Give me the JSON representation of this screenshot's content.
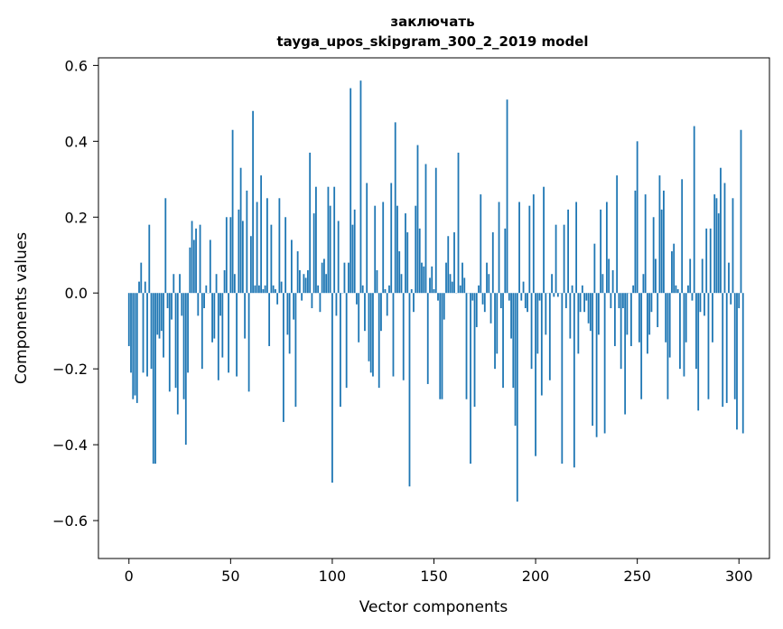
{
  "chart_data": {
    "type": "bar",
    "title": "заключать",
    "subtitle": "tayga_upos_skipgram_300_2_2019 model",
    "xlabel": "Vector components",
    "ylabel": "Components values",
    "xlim": [
      -15,
      315
    ],
    "ylim": [
      -0.7,
      0.62
    ],
    "xticks": [
      0,
      50,
      100,
      150,
      200,
      250,
      300
    ],
    "yticks": [
      -0.6,
      -0.4,
      -0.2,
      0.0,
      0.2,
      0.4,
      0.6
    ],
    "ytick_labels": [
      "−0.6",
      "−0.4",
      "−0.2",
      "0.0",
      "0.2",
      "0.4",
      "0.6"
    ],
    "bar_color": "#1f77b4",
    "grid": false,
    "values": [
      -0.14,
      -0.21,
      -0.28,
      -0.27,
      -0.29,
      0.03,
      0.08,
      -0.21,
      0.03,
      -0.22,
      0.18,
      -0.2,
      -0.45,
      -0.45,
      -0.11,
      -0.12,
      -0.1,
      -0.17,
      0.25,
      -0.04,
      -0.26,
      -0.07,
      0.05,
      -0.25,
      -0.32,
      0.05,
      -0.06,
      -0.28,
      -0.4,
      -0.21,
      0.12,
      0.19,
      0.14,
      0.17,
      -0.06,
      0.18,
      -0.2,
      -0.04,
      0.02,
      0.0,
      0.14,
      -0.13,
      -0.12,
      0.05,
      -0.23,
      -0.06,
      -0.17,
      0.06,
      0.2,
      -0.21,
      0.2,
      0.43,
      0.05,
      -0.22,
      0.22,
      0.33,
      0.19,
      -0.12,
      0.27,
      -0.26,
      0.15,
      0.48,
      0.02,
      0.24,
      0.02,
      0.31,
      0.01,
      0.02,
      0.25,
      -0.14,
      0.18,
      0.02,
      0.01,
      -0.03,
      0.25,
      0.03,
      -0.34,
      0.2,
      -0.11,
      -0.16,
      0.14,
      -0.07,
      -0.3,
      0.11,
      0.06,
      -0.02,
      0.05,
      0.04,
      0.06,
      0.37,
      -0.04,
      0.21,
      0.28,
      0.02,
      -0.05,
      0.08,
      0.09,
      0.05,
      0.28,
      0.23,
      -0.5,
      0.28,
      -0.06,
      0.19,
      -0.3,
      0.0,
      0.08,
      -0.25,
      0.08,
      0.54,
      0.18,
      0.22,
      -0.03,
      -0.13,
      0.56,
      0.02,
      -0.1,
      0.29,
      -0.18,
      -0.21,
      -0.22,
      0.23,
      0.06,
      -0.25,
      -0.1,
      0.24,
      0.01,
      -0.06,
      0.02,
      0.29,
      -0.22,
      0.45,
      0.23,
      0.11,
      0.05,
      -0.23,
      0.21,
      0.16,
      -0.51,
      0.01,
      -0.05,
      0.23,
      0.39,
      0.17,
      0.08,
      0.07,
      0.34,
      -0.24,
      0.04,
      0.07,
      0.01,
      0.33,
      -0.02,
      -0.28,
      -0.28,
      -0.07,
      0.08,
      0.15,
      0.05,
      0.03,
      0.16,
      0.0,
      0.37,
      0.02,
      0.08,
      0.04,
      -0.28,
      0.0,
      -0.45,
      -0.02,
      -0.3,
      -0.09,
      0.02,
      0.26,
      -0.03,
      -0.05,
      0.08,
      0.05,
      -0.08,
      0.16,
      -0.2,
      -0.16,
      0.24,
      -0.04,
      -0.25,
      0.17,
      0.51,
      -0.02,
      -0.12,
      -0.25,
      -0.35,
      -0.55,
      0.24,
      -0.02,
      0.03,
      -0.04,
      -0.05,
      0.23,
      -0.2,
      0.26,
      -0.43,
      -0.16,
      -0.02,
      -0.27,
      0.28,
      -0.11,
      0.0,
      -0.23,
      0.05,
      -0.01,
      0.18,
      -0.01,
      0.0,
      -0.45,
      0.18,
      -0.04,
      0.22,
      -0.12,
      0.02,
      -0.46,
      0.24,
      -0.16,
      -0.05,
      0.02,
      -0.05,
      -0.02,
      -0.08,
      -0.1,
      -0.35,
      0.13,
      -0.38,
      -0.11,
      0.22,
      0.05,
      -0.37,
      0.24,
      0.09,
      -0.04,
      0.06,
      -0.14,
      0.31,
      -0.04,
      -0.2,
      -0.04,
      -0.32,
      -0.11,
      0.0,
      -0.14,
      0.02,
      0.27,
      0.4,
      -0.13,
      -0.28,
      0.05,
      0.26,
      -0.16,
      -0.11,
      -0.05,
      0.2,
      0.09,
      -0.09,
      0.31,
      0.22,
      0.27,
      -0.13,
      -0.28,
      -0.17,
      0.11,
      0.13,
      0.02,
      0.01,
      -0.2,
      0.3,
      -0.22,
      -0.13,
      0.02,
      0.09,
      -0.02,
      0.44,
      -0.2,
      -0.31,
      -0.05,
      0.09,
      -0.06,
      0.17,
      -0.28,
      0.17,
      -0.13,
      0.26,
      0.25,
      0.21,
      0.33,
      -0.3,
      0.29,
      -0.29,
      0.08,
      -0.03,
      0.25,
      -0.28,
      -0.36,
      -0.04,
      0.43,
      -0.37
    ]
  }
}
